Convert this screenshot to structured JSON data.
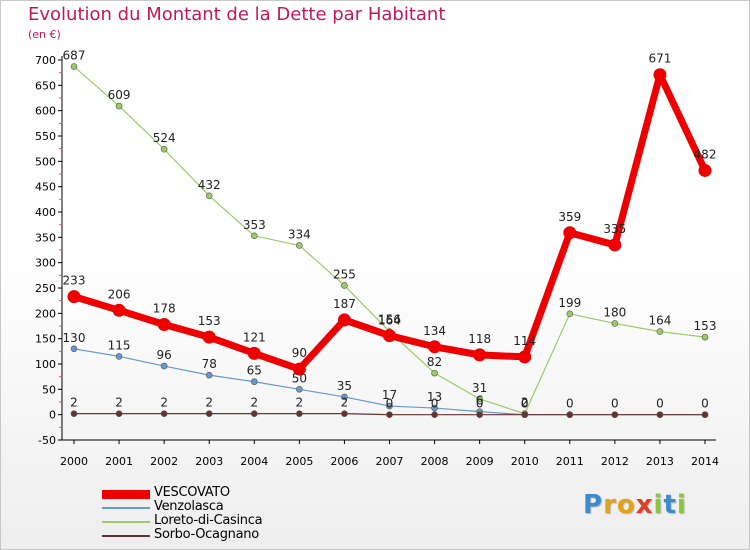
{
  "title": "Evolution du Montant de la Dette par Habitant",
  "subtitle": "(en €)",
  "logo": {
    "letters": [
      {
        "ch": "P",
        "color": "#3d8bcd"
      },
      {
        "ch": "r",
        "color": "#e3a21a"
      },
      {
        "ch": "o",
        "color": "#e3a21a"
      },
      {
        "ch": "x",
        "color": "#d9412b"
      },
      {
        "ch": "i",
        "color": "#8cc63f"
      },
      {
        "ch": "t",
        "color": "#3d8bcd"
      },
      {
        "ch": "i",
        "color": "#8cc63f"
      }
    ]
  },
  "chart_data": {
    "type": "line",
    "categories": [
      "2000",
      "2001",
      "2002",
      "2003",
      "2004",
      "2005",
      "2006",
      "2007",
      "2008",
      "2009",
      "2010",
      "2011",
      "2012",
      "2013",
      "2014"
    ],
    "ylim": [
      -50,
      700
    ],
    "yticks": [
      -50,
      0,
      50,
      100,
      150,
      200,
      250,
      300,
      350,
      400,
      450,
      500,
      550,
      600,
      650,
      700
    ],
    "grid": false,
    "legend_position": "bottom-left",
    "series": [
      {
        "name": "Loreto-di-Casinca",
        "color": "#99cc66",
        "width": 1.2,
        "values": [
          687,
          609,
          524,
          432,
          353,
          334,
          255,
          164,
          82,
          31,
          2,
          199,
          180,
          164,
          153
        ],
        "labels": [
          "687",
          "609",
          "524",
          "432",
          "353",
          "334",
          "255",
          "164",
          "82",
          "31",
          "2",
          "199",
          "180",
          "164",
          "153"
        ]
      },
      {
        "name": "Venzolasca",
        "color": "#6699cc",
        "width": 1.2,
        "values": [
          130,
          115,
          96,
          78,
          65,
          50,
          35,
          17,
          13,
          6,
          0,
          0,
          0,
          0,
          0
        ],
        "labels": [
          "130",
          "115",
          "96",
          "78",
          "65",
          "50",
          "35",
          "17",
          "13",
          "6",
          "0",
          "",
          "",
          "",
          ""
        ]
      },
      {
        "name": "Sorbo-Ocagnano",
        "color": "#663333",
        "width": 1.2,
        "values": [
          2,
          2,
          2,
          2,
          2,
          2,
          2,
          0,
          0,
          0,
          0,
          0,
          0,
          0,
          0
        ],
        "labels": [
          "2",
          "2",
          "2",
          "2",
          "2",
          "2",
          "2",
          "0",
          "0",
          "0",
          "0",
          "0",
          "0",
          "0",
          "0"
        ]
      },
      {
        "name": "VESCOVATO",
        "color": "#ee0000",
        "width": 7,
        "values": [
          233,
          206,
          178,
          153,
          121,
          90,
          187,
          156,
          134,
          118,
          114,
          359,
          335,
          671,
          482
        ],
        "labels": [
          "233",
          "206",
          "178",
          "153",
          "121",
          "90",
          "187",
          "156",
          "134",
          "118",
          "114",
          "359",
          "335",
          "671",
          "482"
        ]
      }
    ],
    "legend_order": [
      "VESCOVATO",
      "Venzolasca",
      "Loreto-di-Casinca",
      "Sorbo-Ocagnano"
    ]
  }
}
